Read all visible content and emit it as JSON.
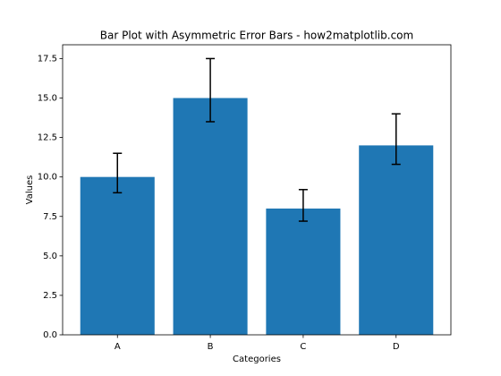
{
  "chart_data": {
    "type": "bar",
    "title": "Bar Plot with Asymmetric Error Bars - how2matplotlib.com",
    "x_label": "Categories",
    "y_label": "Values",
    "categories": [
      "A",
      "B",
      "C",
      "D"
    ],
    "values": [
      10,
      15,
      8,
      12
    ],
    "error_low": [
      1,
      1.5,
      0.8,
      1.2
    ],
    "error_high": [
      1.5,
      2.5,
      1.2,
      2
    ],
    "color": "#1f77b4",
    "error_color": "#000000",
    "ylim": [
      0,
      18.375
    ],
    "yticks": [
      {
        "value": 0,
        "label": "0.0"
      },
      {
        "value": 2.5,
        "label": "2.5"
      },
      {
        "value": 5,
        "label": "5.0"
      },
      {
        "value": 7.5,
        "label": "7.5"
      },
      {
        "value": 10,
        "label": "10.0"
      },
      {
        "value": 12.5,
        "label": "12.5"
      },
      {
        "value": 15,
        "label": "15.0"
      },
      {
        "value": 17.5,
        "label": "17.5"
      }
    ],
    "grid": false
  }
}
